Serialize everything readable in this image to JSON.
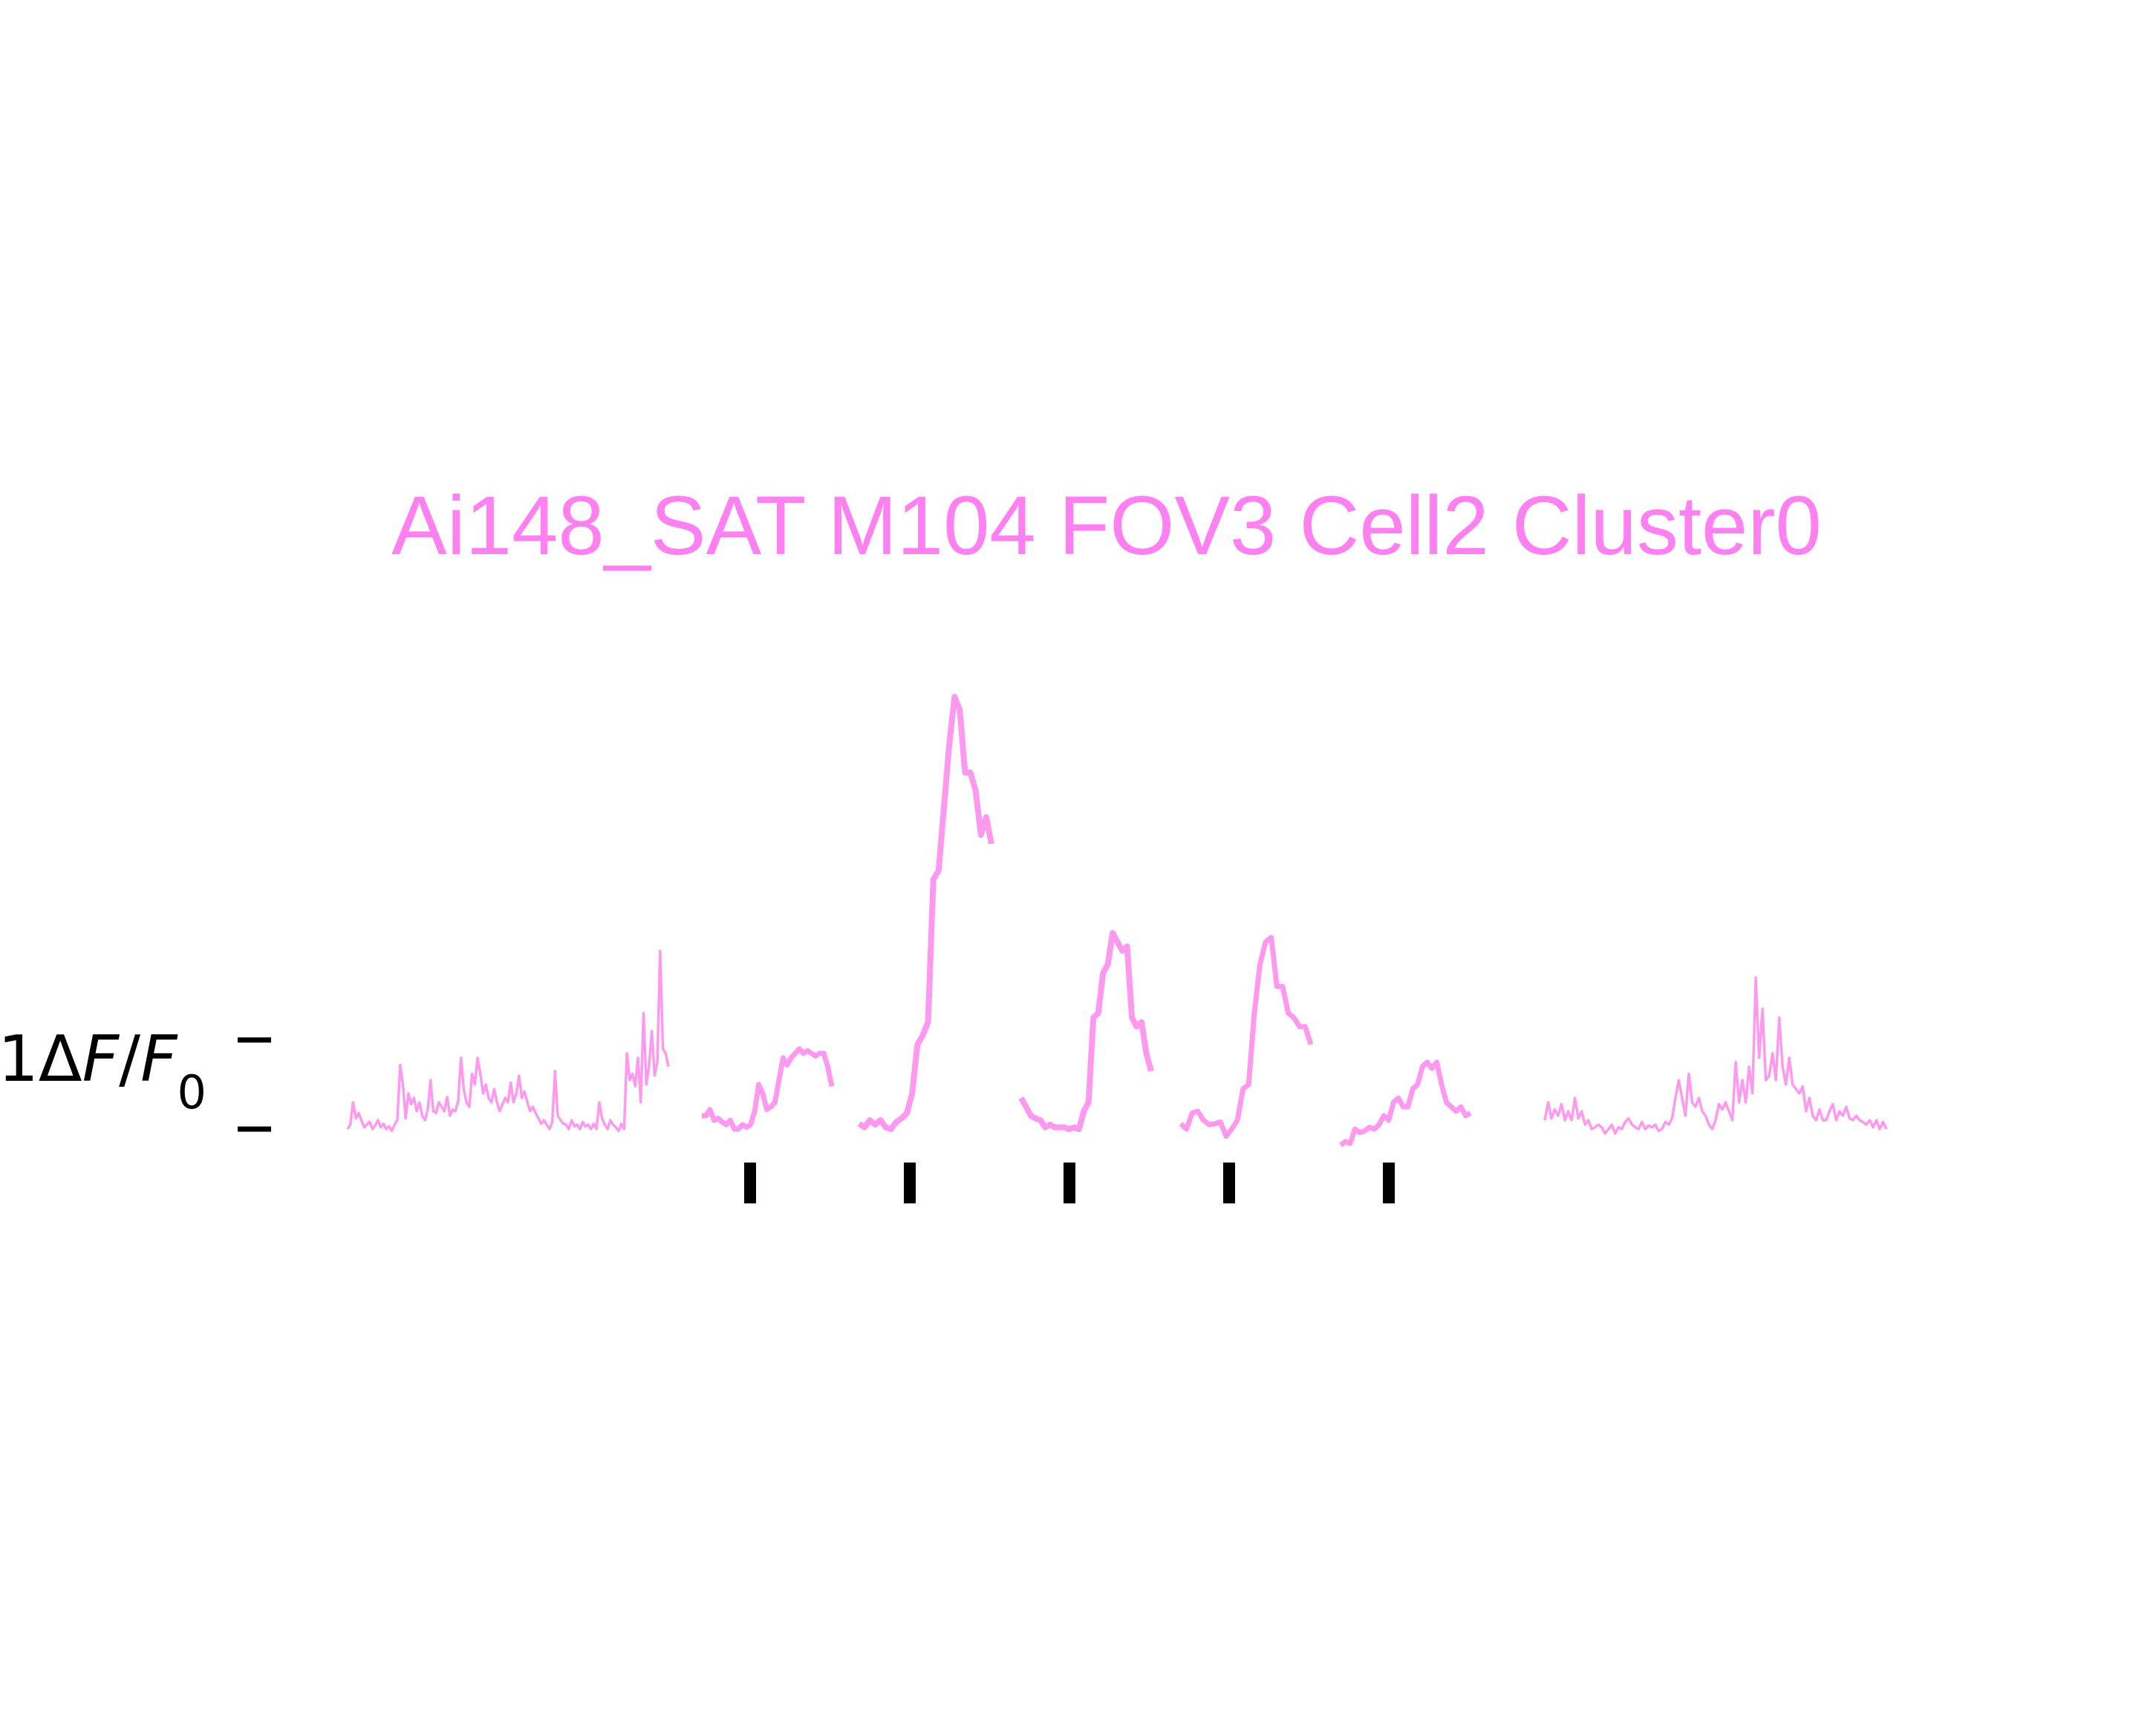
{
  "chart_data": {
    "type": "line",
    "title": "Ai148_SAT M104 FOV3 Cell2 Cluster0",
    "scale_bar_label": "1ΔF/F0",
    "colors": {
      "trace": "#ff99f0",
      "title": "#ff80f0",
      "ticks": "#000000"
    },
    "grid": false,
    "stimulus_marks": 5,
    "ylim": [
      -0.2,
      4.9
    ],
    "segments": [
      {
        "name": "baseline-pre",
        "y": [
          0.0,
          0.05,
          0.3,
          0.12,
          0.18,
          0.1,
          0.02,
          0.05,
          0.08,
          0.0,
          0.04,
          0.1,
          0.02,
          0.06,
          0.0,
          0.03,
          -0.02,
          0.05,
          0.1,
          0.72,
          0.5,
          0.12,
          0.4,
          0.28,
          0.35,
          0.2,
          0.3,
          0.15,
          0.1,
          0.22,
          0.55,
          0.2,
          0.18,
          0.3,
          0.25,
          0.2,
          0.36,
          0.15,
          0.22,
          0.2,
          0.32,
          0.8,
          0.45,
          0.3,
          0.25,
          0.62,
          0.5,
          0.8,
          0.62,
          0.4,
          0.5,
          0.35,
          0.3,
          0.45,
          0.3,
          0.2,
          0.28,
          0.35,
          0.3,
          0.52,
          0.3,
          0.4,
          0.6,
          0.35,
          0.42,
          0.3,
          0.2,
          0.25,
          0.18,
          0.12,
          0.06,
          0.1,
          0.05,
          0.0,
          0.08,
          0.65,
          0.15,
          0.1,
          0.06,
          0.05,
          0.0,
          0.1,
          0.03,
          0.05,
          0.0,
          0.08,
          0.03,
          0.05,
          0.0,
          0.06,
          0.0,
          0.3,
          0.12,
          0.05,
          0.0,
          0.1,
          0.05,
          0.02,
          -0.02,
          0.06,
          0.0,
          0.85,
          0.55,
          0.62,
          0.48,
          0.8,
          0.3,
          1.3,
          0.5,
          0.7,
          1.1,
          0.6,
          0.75,
          2.0,
          0.9,
          0.85,
          0.7
        ]
      },
      {
        "name": "trial-1",
        "y": [
          0.15,
          0.15,
          0.22,
          0.1,
          0.12,
          0.08,
          0.05,
          0.1,
          0.0,
          0.0,
          0.05,
          0.02,
          0.05,
          0.2,
          0.5,
          0.4,
          0.22,
          0.25,
          0.3,
          0.55,
          0.8,
          0.72,
          0.8,
          0.85,
          0.9,
          0.85,
          0.88,
          0.85,
          0.82,
          0.85,
          0.85,
          0.7,
          0.48
        ]
      },
      {
        "name": "trial-2",
        "y": [
          0.06,
          0.02,
          0.1,
          0.05,
          0.1,
          0.02,
          0.0,
          0.08,
          0.12,
          0.18,
          0.4,
          0.95,
          1.05,
          1.2,
          2.8,
          2.9,
          3.6,
          4.3,
          4.85,
          4.7,
          4.0,
          4.0,
          3.8,
          3.3,
          3.5,
          3.2
        ]
      },
      {
        "name": "trial-3",
        "y": [
          0.35,
          0.25,
          0.15,
          0.12,
          0.1,
          0.02,
          0.05,
          0.02,
          0.02,
          0.02,
          0.0,
          0.02,
          0.0,
          0.2,
          0.3,
          1.25,
          1.3,
          1.75,
          1.85,
          2.2,
          2.1,
          2.0,
          2.05,
          1.25,
          1.15,
          1.2,
          0.85,
          0.65
        ]
      },
      {
        "name": "trial-4",
        "y": [
          0.06,
          0.0,
          0.18,
          0.2,
          0.1,
          0.05,
          0.06,
          0.08,
          -0.08,
          0.0,
          0.1,
          0.45,
          0.5,
          1.3,
          1.85,
          2.1,
          2.15,
          1.6,
          1.6,
          1.3,
          1.25,
          1.15,
          1.15,
          0.95
        ]
      },
      {
        "name": "trial-5",
        "y": [
          -0.18,
          -0.14,
          -0.16,
          0.0,
          -0.04,
          -0.02,
          0.02,
          0.0,
          0.05,
          0.15,
          0.1,
          0.3,
          0.35,
          0.25,
          0.25,
          0.45,
          0.5,
          0.7,
          0.75,
          0.68,
          0.75,
          0.5,
          0.3,
          0.25,
          0.2,
          0.25,
          0.15,
          0.18
        ]
      },
      {
        "name": "baseline-post",
        "y": [
          0.1,
          0.3,
          0.12,
          0.22,
          0.15,
          0.28,
          0.1,
          0.2,
          0.1,
          0.35,
          0.12,
          0.2,
          0.05,
          0.1,
          0.0,
          0.02,
          0.05,
          0.02,
          -0.05,
          0.0,
          0.05,
          -0.05,
          0.02,
          0.0,
          0.08,
          0.12,
          0.05,
          0.02,
          0.0,
          0.08,
          0.0,
          0.04,
          0.02,
          0.05,
          -0.02,
          0.0,
          0.08,
          0.05,
          0.12,
          0.35,
          0.55,
          0.35,
          0.15,
          0.62,
          0.3,
          0.25,
          0.35,
          0.2,
          0.15,
          0.05,
          0.0,
          0.1,
          0.28,
          0.22,
          0.3,
          0.2,
          0.1,
          0.75,
          0.3,
          0.55,
          0.3,
          0.7,
          0.4,
          1.7,
          0.8,
          1.35,
          0.55,
          0.6,
          0.85,
          0.55,
          1.25,
          0.7,
          0.5,
          0.8,
          0.5,
          0.45,
          0.4,
          0.48,
          0.2,
          0.35,
          0.15,
          0.1,
          0.22,
          0.1,
          0.1,
          0.2,
          0.28,
          0.1,
          0.2,
          0.15,
          0.25,
          0.12,
          0.1,
          0.15,
          0.1,
          0.08,
          0.05,
          0.1,
          0.02,
          0.1,
          0.0,
          0.08,
          0.0
        ]
      }
    ]
  }
}
